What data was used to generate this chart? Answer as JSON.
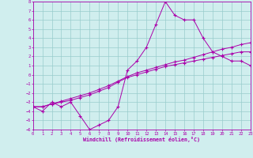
{
  "bg_color": "#d0eeee",
  "line_color": "#aa00aa",
  "grid_color": "#99cccc",
  "xlim": [
    0,
    23
  ],
  "ylim": [
    -6,
    8
  ],
  "xticks": [
    0,
    1,
    2,
    3,
    4,
    5,
    6,
    7,
    8,
    9,
    10,
    11,
    12,
    13,
    14,
    15,
    16,
    17,
    18,
    19,
    20,
    21,
    22,
    23
  ],
  "yticks": [
    -6,
    -5,
    -4,
    -3,
    -2,
    -1,
    0,
    1,
    2,
    3,
    4,
    5,
    6,
    7,
    8
  ],
  "xlabel": "Windchill (Refroidissement éolien,°C)",
  "series1_x": [
    0,
    1,
    2,
    3,
    4,
    5,
    6,
    7,
    8,
    9,
    10,
    11,
    12,
    13,
    14,
    15,
    16,
    17,
    18,
    19,
    20,
    21,
    22,
    23
  ],
  "series1_y": [
    -3.5,
    -4.0,
    -3.0,
    -3.5,
    -3.0,
    -4.5,
    -6.0,
    -5.5,
    -5.0,
    -3.5,
    0.5,
    1.5,
    3.0,
    5.5,
    8.0,
    6.5,
    6.0,
    6.0,
    4.0,
    2.5,
    2.0,
    1.5,
    1.5,
    1.0
  ],
  "series2_x": [
    0,
    1,
    2,
    3,
    4,
    5,
    6,
    7,
    8,
    9,
    10,
    11,
    12,
    13,
    14,
    15,
    16,
    17,
    18,
    19,
    20,
    21,
    22,
    23
  ],
  "series2_y": [
    -3.5,
    -3.5,
    -3.2,
    -3.0,
    -2.8,
    -2.5,
    -2.2,
    -1.8,
    -1.4,
    -0.8,
    -0.3,
    0.0,
    0.3,
    0.6,
    0.9,
    1.1,
    1.3,
    1.5,
    1.7,
    1.9,
    2.1,
    2.3,
    2.5,
    2.5
  ],
  "series3_x": [
    0,
    1,
    2,
    3,
    4,
    5,
    6,
    7,
    8,
    9,
    10,
    11,
    12,
    13,
    14,
    15,
    16,
    17,
    18,
    19,
    20,
    21,
    22,
    23
  ],
  "series3_y": [
    -3.5,
    -3.5,
    -3.2,
    -2.9,
    -2.6,
    -2.3,
    -2.0,
    -1.6,
    -1.2,
    -0.7,
    -0.2,
    0.2,
    0.5,
    0.8,
    1.1,
    1.4,
    1.6,
    1.9,
    2.2,
    2.5,
    2.8,
    3.0,
    3.3,
    3.5
  ]
}
